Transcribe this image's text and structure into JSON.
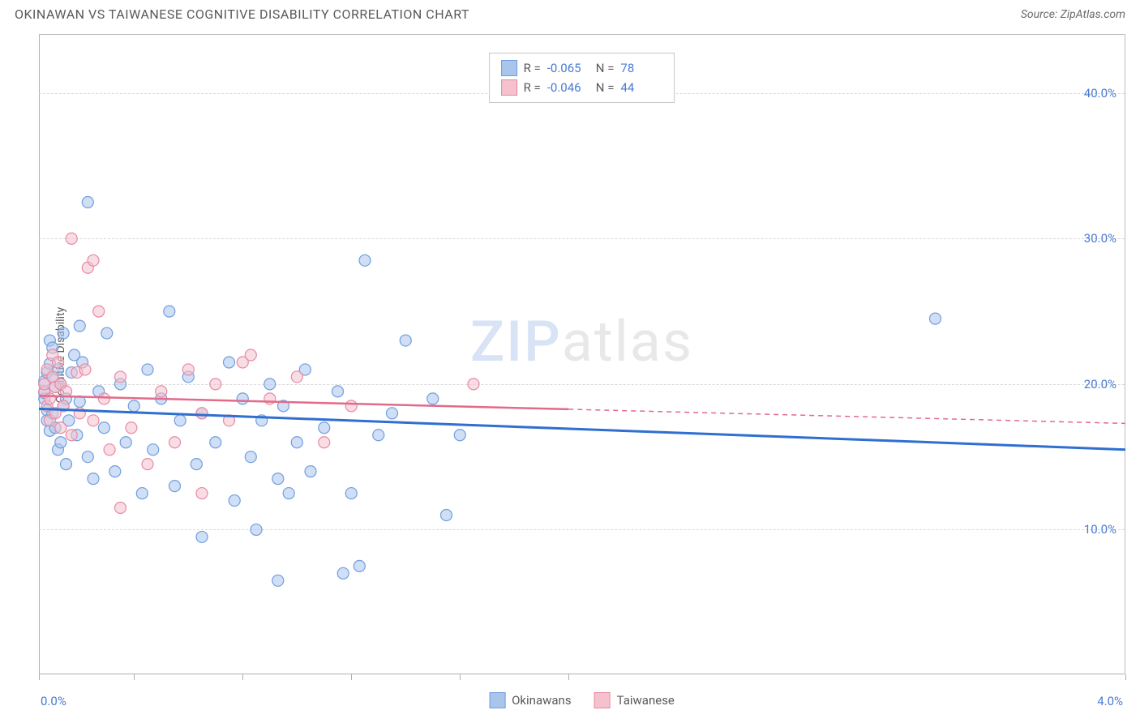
{
  "header": {
    "title": "OKINAWAN VS TAIWANESE COGNITIVE DISABILITY CORRELATION CHART",
    "source": "Source: ZipAtlas.com"
  },
  "watermark": {
    "part1": "ZIP",
    "part2": "atlas"
  },
  "chart": {
    "type": "scatter",
    "ylabel": "Cognitive Disability",
    "xlim": [
      0.0,
      4.0
    ],
    "ylim": [
      0.0,
      44.0
    ],
    "xtick_labels": {
      "min": "0.0%",
      "max": "4.0%"
    },
    "xtick_positions": [
      0.0,
      0.35,
      0.75,
      1.15,
      1.55,
      1.95,
      4.0
    ],
    "ytick_labels": [
      {
        "v": 10.0,
        "label": "10.0%"
      },
      {
        "v": 20.0,
        "label": "20.0%"
      },
      {
        "v": 30.0,
        "label": "30.0%"
      },
      {
        "v": 40.0,
        "label": "40.0%"
      }
    ],
    "grid_color": "#d8d8d8",
    "background_color": "#ffffff",
    "marker_radius": 7,
    "marker_opacity": 0.55,
    "series": [
      {
        "name": "Okinawans",
        "fill": "#a9c5ec",
        "stroke": "#6f9fde",
        "line_color": "#2f6fd0",
        "line_width": 3,
        "R": "-0.065",
        "N": "78",
        "regression": {
          "x1": 0.0,
          "y1": 18.3,
          "x2": 4.0,
          "y2": 15.5
        },
        "regression_solid_xmax": 4.0,
        "points": [
          [
            0.02,
            19.0
          ],
          [
            0.02,
            20.2
          ],
          [
            0.02,
            19.4
          ],
          [
            0.03,
            18.2
          ],
          [
            0.03,
            20.8
          ],
          [
            0.03,
            17.5
          ],
          [
            0.04,
            21.4
          ],
          [
            0.04,
            23.0
          ],
          [
            0.04,
            16.8
          ],
          [
            0.05,
            20.5
          ],
          [
            0.05,
            18.0
          ],
          [
            0.05,
            22.5
          ],
          [
            0.06,
            17.0
          ],
          [
            0.06,
            19.8
          ],
          [
            0.07,
            21.0
          ],
          [
            0.07,
            15.5
          ],
          [
            0.08,
            20.0
          ],
          [
            0.08,
            16.0
          ],
          [
            0.09,
            18.5
          ],
          [
            0.09,
            23.5
          ],
          [
            0.1,
            19.0
          ],
          [
            0.1,
            14.5
          ],
          [
            0.11,
            17.5
          ],
          [
            0.12,
            20.8
          ],
          [
            0.13,
            22.0
          ],
          [
            0.14,
            16.5
          ],
          [
            0.15,
            18.8
          ],
          [
            0.16,
            21.5
          ],
          [
            0.18,
            15.0
          ],
          [
            0.18,
            32.5
          ],
          [
            0.2,
            13.5
          ],
          [
            0.22,
            19.5
          ],
          [
            0.24,
            17.0
          ],
          [
            0.25,
            23.5
          ],
          [
            0.28,
            14.0
          ],
          [
            0.3,
            20.0
          ],
          [
            0.32,
            16.0
          ],
          [
            0.35,
            18.5
          ],
          [
            0.38,
            12.5
          ],
          [
            0.4,
            21.0
          ],
          [
            0.42,
            15.5
          ],
          [
            0.45,
            19.0
          ],
          [
            0.48,
            25.0
          ],
          [
            0.5,
            13.0
          ],
          [
            0.52,
            17.5
          ],
          [
            0.55,
            20.5
          ],
          [
            0.58,
            14.5
          ],
          [
            0.6,
            18.0
          ],
          [
            0.6,
            9.5
          ],
          [
            0.65,
            16.0
          ],
          [
            0.7,
            21.5
          ],
          [
            0.72,
            12.0
          ],
          [
            0.75,
            19.0
          ],
          [
            0.78,
            15.0
          ],
          [
            0.8,
            10.0
          ],
          [
            0.82,
            17.5
          ],
          [
            0.85,
            20.0
          ],
          [
            0.88,
            13.5
          ],
          [
            0.88,
            6.5
          ],
          [
            0.9,
            18.5
          ],
          [
            0.92,
            12.5
          ],
          [
            0.95,
            16.0
          ],
          [
            0.98,
            21.0
          ],
          [
            1.0,
            14.0
          ],
          [
            1.05,
            17.0
          ],
          [
            1.1,
            19.5
          ],
          [
            1.12,
            7.0
          ],
          [
            1.15,
            12.5
          ],
          [
            1.18,
            7.5
          ],
          [
            1.2,
            28.5
          ],
          [
            1.25,
            16.5
          ],
          [
            1.3,
            18.0
          ],
          [
            1.35,
            23.0
          ],
          [
            1.45,
            19.0
          ],
          [
            1.5,
            11.0
          ],
          [
            1.55,
            16.5
          ],
          [
            3.3,
            24.5
          ],
          [
            0.15,
            24.0
          ]
        ]
      },
      {
        "name": "Taiwanese",
        "fill": "#f4c1cd",
        "stroke": "#e88aa3",
        "line_color": "#e26a8a",
        "line_width": 2.5,
        "R": "-0.046",
        "N": "44",
        "regression": {
          "x1": 0.0,
          "y1": 19.2,
          "x2": 4.0,
          "y2": 17.3
        },
        "regression_solid_xmax": 1.95,
        "points": [
          [
            0.02,
            19.5
          ],
          [
            0.02,
            20.0
          ],
          [
            0.03,
            18.5
          ],
          [
            0.03,
            21.0
          ],
          [
            0.04,
            19.0
          ],
          [
            0.04,
            17.5
          ],
          [
            0.05,
            22.0
          ],
          [
            0.05,
            20.5
          ],
          [
            0.06,
            18.0
          ],
          [
            0.06,
            19.8
          ],
          [
            0.07,
            21.5
          ],
          [
            0.08,
            17.0
          ],
          [
            0.08,
            20.0
          ],
          [
            0.09,
            18.5
          ],
          [
            0.1,
            19.5
          ],
          [
            0.12,
            16.5
          ],
          [
            0.12,
            30.0
          ],
          [
            0.14,
            20.8
          ],
          [
            0.15,
            18.0
          ],
          [
            0.17,
            21.0
          ],
          [
            0.18,
            28.0
          ],
          [
            0.2,
            28.5
          ],
          [
            0.2,
            17.5
          ],
          [
            0.22,
            25.0
          ],
          [
            0.24,
            19.0
          ],
          [
            0.26,
            15.5
          ],
          [
            0.3,
            20.5
          ],
          [
            0.3,
            11.5
          ],
          [
            0.34,
            17.0
          ],
          [
            0.4,
            14.5
          ],
          [
            0.45,
            19.5
          ],
          [
            0.5,
            16.0
          ],
          [
            0.55,
            21.0
          ],
          [
            0.6,
            18.0
          ],
          [
            0.6,
            12.5
          ],
          [
            0.65,
            20.0
          ],
          [
            0.7,
            17.5
          ],
          [
            0.75,
            21.5
          ],
          [
            0.78,
            22.0
          ],
          [
            0.85,
            19.0
          ],
          [
            0.95,
            20.5
          ],
          [
            1.05,
            16.0
          ],
          [
            1.15,
            18.5
          ],
          [
            1.6,
            20.0
          ]
        ]
      }
    ],
    "stats_legend": {
      "rows": [
        {
          "swatch_fill": "#a9c5ec",
          "swatch_stroke": "#6f9fde",
          "R_label": "R =",
          "R": "-0.065",
          "N_label": "N =",
          "N": "78"
        },
        {
          "swatch_fill": "#f4c1cd",
          "swatch_stroke": "#e88aa3",
          "R_label": "R =",
          "R": "-0.046",
          "N_label": "N =",
          "N": "44"
        }
      ]
    },
    "series_legend": [
      {
        "swatch_fill": "#a9c5ec",
        "swatch_stroke": "#6f9fde",
        "label": "Okinawans"
      },
      {
        "swatch_fill": "#f4c1cd",
        "swatch_stroke": "#e88aa3",
        "label": "Taiwanese"
      }
    ]
  }
}
